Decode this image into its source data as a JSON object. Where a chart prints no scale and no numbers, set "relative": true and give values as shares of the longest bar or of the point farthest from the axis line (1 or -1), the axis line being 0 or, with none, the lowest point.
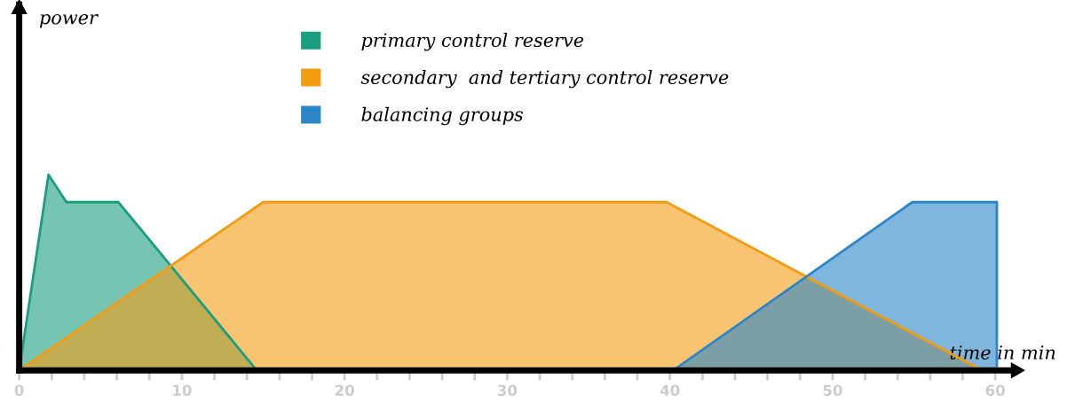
{
  "chart_data": {
    "type": "area",
    "relative": true,
    "xlabel": "time in min",
    "annotations": [
      "power"
    ],
    "xlim": [
      0,
      61
    ],
    "xticks": [
      0,
      {
        "value": 2,
        "label": null
      },
      {
        "value": 4,
        "label": null
      },
      {
        "value": 6,
        "label": null
      },
      {
        "value": 8,
        "label": null
      },
      10,
      {
        "value": 12,
        "label": null
      },
      {
        "value": 14,
        "label": null
      },
      {
        "value": 16,
        "label": null
      },
      {
        "value": 18,
        "label": null
      },
      20,
      {
        "value": 22,
        "label": null
      },
      {
        "value": 24,
        "label": null
      },
      {
        "value": 26,
        "label": null
      },
      {
        "value": 28,
        "label": null
      },
      30,
      {
        "value": 32,
        "label": null
      },
      {
        "value": 34,
        "label": null
      },
      {
        "value": 36,
        "label": null
      },
      {
        "value": 38,
        "label": null
      },
      40,
      {
        "value": 42,
        "label": null
      },
      {
        "value": 44,
        "label": null
      },
      {
        "value": 46,
        "label": null
      },
      {
        "value": 48,
        "label": null
      },
      50,
      {
        "value": 52,
        "label": null
      },
      {
        "value": 54,
        "label": null
      },
      {
        "value": 56,
        "label": null
      },
      {
        "value": 58,
        "label": null
      },
      60
    ],
    "legend": "top",
    "grid": false,
    "tick_labels": "x",
    "series": [
      {
        "name": "primary control reserve",
        "color": "#1a9e80",
        "x": [
          0,
          1.8,
          2.9,
          6.1,
          14.6
        ],
        "values": [
          0,
          1,
          0.86,
          0.86,
          0
        ]
      },
      {
        "name": "secondary  and tertiary control reserve",
        "color": "#f39c12",
        "x": [
          0,
          15.0,
          39.8,
          59.2
        ],
        "values": [
          0,
          0.86,
          0.86,
          0
        ]
      },
      {
        "name": "balancing groups",
        "color": "#2a86c8",
        "x": [
          40.2,
          54.9,
          60.1,
          60.1
        ],
        "values": [
          0,
          0.86,
          0.86,
          0
        ]
      }
    ]
  }
}
